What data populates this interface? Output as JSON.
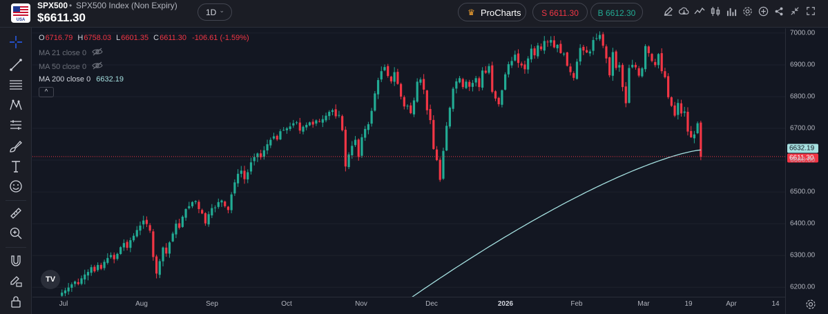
{
  "header": {
    "symbol": "SPX500",
    "separator": "•",
    "description": "SPX500 Index (Non Expiry)",
    "price": "$6611.30",
    "timeframe": "1D",
    "procharts_label": "ProCharts",
    "sell_label": "S 6611.30",
    "buy_label": "B 6612.30",
    "flag_text": "USA",
    "toolbar_icons": [
      "pencil-icon",
      "cloud-icon",
      "line-chart-icon",
      "candles-icon",
      "bar-chart-icon",
      "settings-icon",
      "add-circle-icon",
      "share-icon",
      "collapse-icon",
      "fullscreen-icon"
    ]
  },
  "sidebar": {
    "tools": [
      "crosshair-icon",
      "trendline-icon",
      "fib-icon",
      "pattern-icon",
      "projection-icon",
      "brush-icon",
      "text-icon",
      "emoji-icon",
      "ruler-icon",
      "zoom-in-icon",
      "magnet-icon",
      "lock-draw-icon",
      "lock-icon"
    ]
  },
  "legend": {
    "o_label": "O",
    "o_value": "6716.79",
    "h_label": "H",
    "h_value": "6758.03",
    "l_label": "L",
    "l_value": "6601.35",
    "c_label": "C",
    "c_value": "6611.30",
    "change": "-106.61 (-1.59%)",
    "ma21": "MA 21 close 0",
    "ma50": "MA 50 close 0",
    "ma200": "MA 200 close 0",
    "ma200_value": "6632.19",
    "collapse_glyph": "^"
  },
  "colors": {
    "up": "#22ab94",
    "down": "#f23645",
    "ma200": "#a5e0e0",
    "background": "#131722"
  },
  "chart_data": {
    "type": "candlestick",
    "y_ticks": [
      "7000.00",
      "6900.00",
      "6800.00",
      "6700.00",
      "6600.00",
      "6500.00",
      "6400.00",
      "6300.00",
      "6200.00"
    ],
    "ylim": [
      6170,
      7015
    ],
    "x_labels": [
      "Jul",
      "Aug",
      "Sep",
      "Oct",
      "Nov",
      "Dec",
      "2026",
      "Feb",
      "Mar",
      "19",
      "Apr",
      "14"
    ],
    "bold_x_labels": [
      "2026"
    ],
    "ma200_tag": "6632.19",
    "price_tag": "6611.30",
    "last_price": 6611.3,
    "ma200_last": 6632.19,
    "closes": [
      6173,
      6183,
      6190,
      6199,
      6209,
      6218,
      6210,
      6228,
      6240,
      6248,
      6263,
      6250,
      6270,
      6258,
      6280,
      6292,
      6301,
      6288,
      6305,
      6326,
      6339,
      6324,
      6348,
      6362,
      6380,
      6394,
      6410,
      6399,
      6378,
      6295,
      6243,
      6282,
      6325,
      6306,
      6341,
      6369,
      6400,
      6387,
      6422,
      6446,
      6455,
      6468,
      6471,
      6446,
      6432,
      6401,
      6430,
      6449,
      6451,
      6468,
      6473,
      6455,
      6443,
      6492,
      6530,
      6557,
      6567,
      6540,
      6562,
      6593,
      6610,
      6621,
      6609,
      6631,
      6650,
      6664,
      6675,
      6665,
      6691,
      6695,
      6700,
      6706,
      6716,
      6719,
      6693,
      6705,
      6711,
      6719,
      6712,
      6725,
      6721,
      6729,
      6740,
      6752,
      6757,
      6738,
      6742,
      6694,
      6580,
      6618,
      6645,
      6664,
      6610,
      6672,
      6698,
      6713,
      6755,
      6810,
      6852,
      6880,
      6893,
      6865,
      6848,
      6877,
      6840,
      6800,
      6769,
      6771,
      6748,
      6788,
      6847,
      6854,
      6822,
      6757,
      6726,
      6635,
      6600,
      6538,
      6629,
      6708,
      6765,
      6825,
      6848,
      6858,
      6830,
      6847,
      6831,
      6843,
      6858,
      6830,
      6882,
      6875,
      6896,
      6815,
      6794,
      6776,
      6820,
      6870,
      6902,
      6912,
      6932,
      6906,
      6898,
      6886,
      6920,
      6951,
      6930,
      6961,
      6949,
      6975,
      6972,
      6978,
      6955,
      6963,
      6937,
      6935,
      6897,
      6877,
      6859,
      6910,
      6953,
      6945,
      6939,
      6942,
      6978,
      6984,
      6994,
      6960,
      6920,
      6867,
      6940,
      6890,
      6899,
      6830,
      6779,
      6890,
      6900,
      6892,
      6866,
      6889,
      6959,
      6937,
      6912,
      6899,
      6934,
      6880,
      6861,
      6798,
      6771,
      6740,
      6780,
      6747,
      6753,
      6690,
      6672,
      6681,
      6716,
      6611
    ],
    "ma200_start": 6152,
    "ma200_end": 6632
  }
}
